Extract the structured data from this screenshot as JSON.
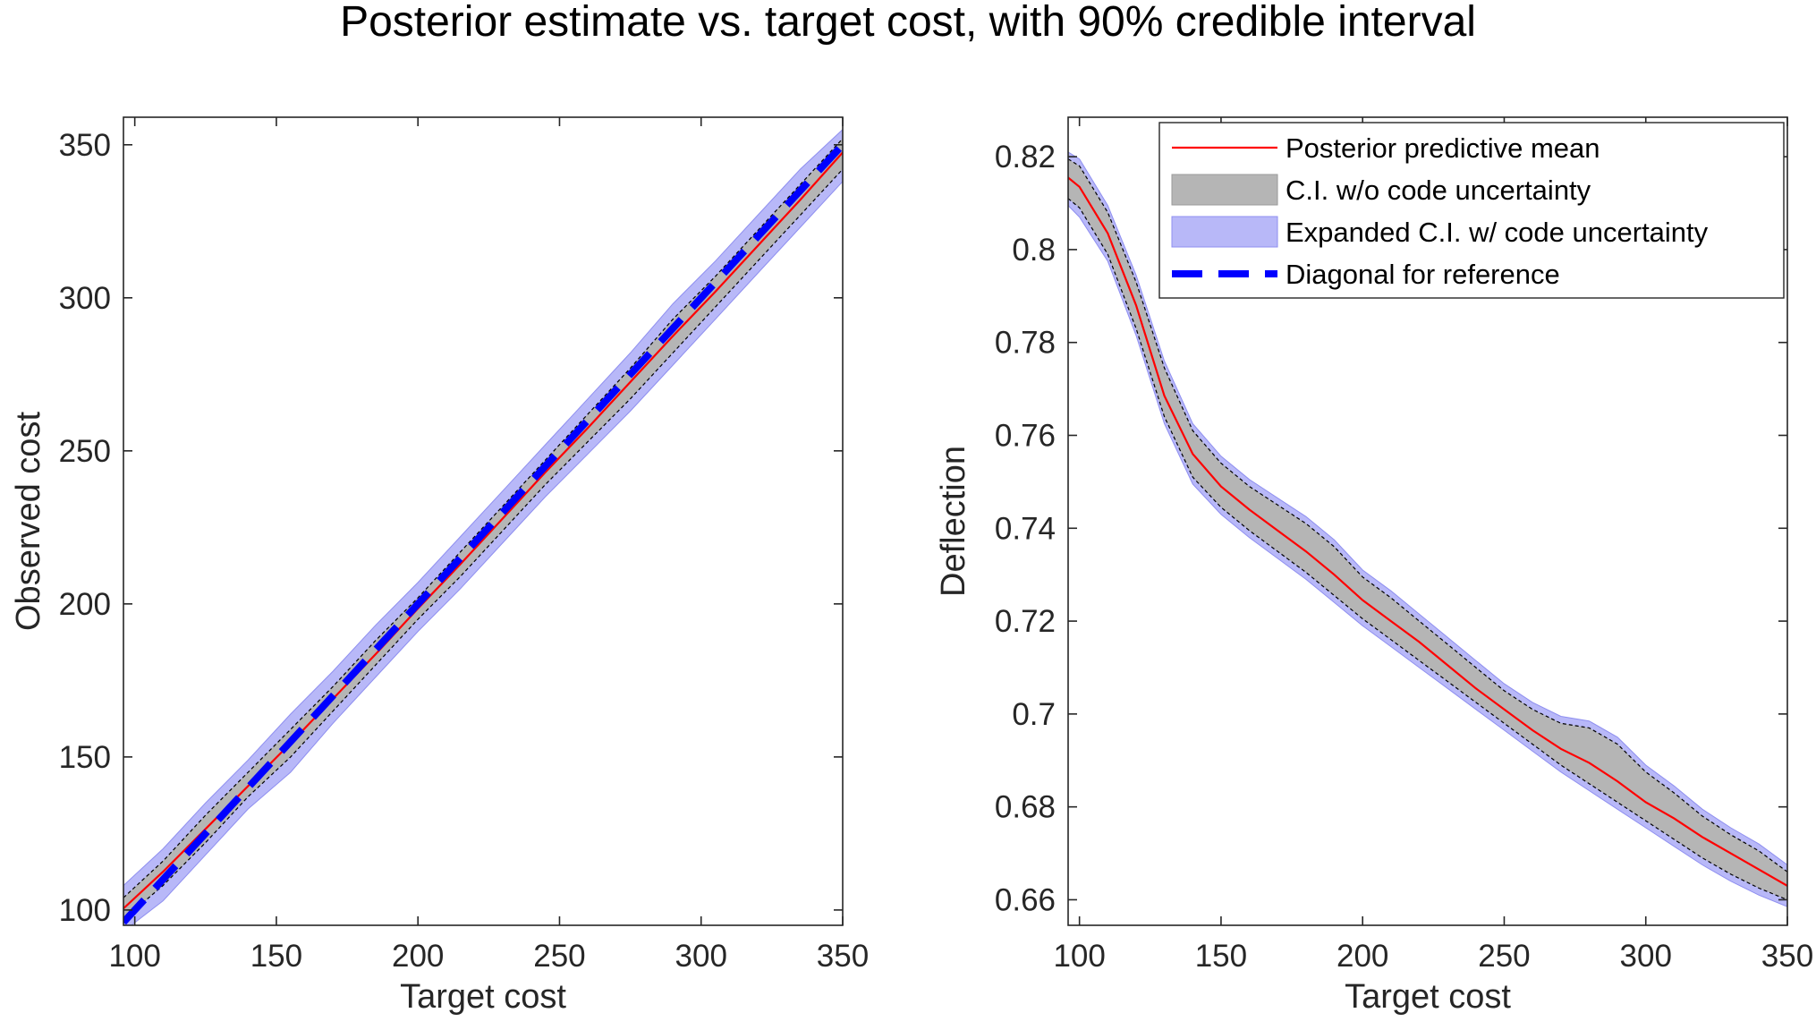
{
  "figure_title": "Posterior estimate vs. target cost, with 90% credible interval",
  "colors": {
    "mean_line": "#ff0000",
    "ci_fill": "#b5b5b5",
    "expanded_ci_fill": "#b8b8f8",
    "diagonal": "#0000ff",
    "axes": "#262626",
    "ci_bound_dash": "#000000"
  },
  "chart_data": [
    {
      "type": "line",
      "subtitle": "left panel",
      "title": "",
      "xlabel": "Target cost",
      "ylabel": "Observed cost",
      "xlim": [
        96,
        350
      ],
      "ylim": [
        95,
        359
      ],
      "xticks": [
        100,
        150,
        200,
        250,
        300,
        350
      ],
      "yticks": [
        100,
        150,
        200,
        250,
        300,
        350
      ],
      "grid": false,
      "legend": "none",
      "x": [
        96,
        110,
        125,
        140,
        155,
        170,
        185,
        200,
        215,
        230,
        245,
        260,
        275,
        290,
        305,
        320,
        335,
        350
      ],
      "series": [
        {
          "role": "mean",
          "values": [
            100.5,
            112.5,
            126.5,
            140.5,
            154.5,
            169.0,
            183.5,
            198.5,
            213.0,
            228.0,
            243.0,
            257.5,
            272.5,
            287.5,
            302.0,
            317.0,
            332.0,
            347.5
          ]
        },
        {
          "role": "ci_lower",
          "values": [
            97,
            108,
            122,
            137,
            150,
            165,
            180,
            195,
            209,
            224,
            239,
            253,
            267,
            282,
            297,
            312,
            327,
            342
          ]
        },
        {
          "role": "ci_upper",
          "values": [
            104,
            116,
            131,
            145,
            159,
            173,
            188,
            202,
            217,
            232,
            247,
            262,
            277,
            293,
            307,
            322,
            337,
            352
          ]
        },
        {
          "role": "expanded_lower",
          "values": [
            93,
            103,
            118,
            133,
            145,
            161,
            176,
            191,
            205,
            220,
            235,
            249,
            263,
            278,
            293,
            308,
            323,
            338
          ]
        },
        {
          "role": "expanded_upper",
          "values": [
            108,
            120,
            135,
            149,
            164,
            178,
            193,
            207,
            222,
            237,
            252,
            267,
            282,
            298,
            312,
            327,
            342,
            355
          ]
        },
        {
          "role": "diagonal",
          "values": [
            96,
            110,
            125,
            140,
            155,
            170,
            185,
            200,
            215,
            230,
            245,
            260,
            275,
            290,
            305,
            320,
            335,
            350
          ]
        }
      ]
    },
    {
      "type": "line",
      "subtitle": "right panel",
      "title": "",
      "xlabel": "Target cost",
      "ylabel": "Deflection",
      "xlim": [
        96,
        350
      ],
      "ylim": [
        0.6545,
        0.8285
      ],
      "xticks": [
        100,
        150,
        200,
        250,
        300,
        350
      ],
      "yticks": [
        0.66,
        0.68,
        0.7,
        0.72,
        0.74,
        0.76,
        0.78,
        0.8,
        0.82
      ],
      "ytick_labels": [
        "0.66",
        "0.68",
        "0.7",
        "0.72",
        "0.74",
        "0.76",
        "0.78",
        "0.8",
        "0.82"
      ],
      "grid": false,
      "legend": "top-right",
      "x": [
        96,
        100,
        110,
        120,
        130,
        140,
        150,
        160,
        170,
        180,
        190,
        200,
        210,
        220,
        230,
        240,
        250,
        260,
        270,
        280,
        290,
        300,
        310,
        320,
        330,
        340,
        350
      ],
      "series": [
        {
          "role": "mean",
          "name": "Posterior predictive mean",
          "values": [
            0.8155,
            0.8135,
            0.8035,
            0.788,
            0.7685,
            0.756,
            0.749,
            0.744,
            0.7395,
            0.735,
            0.73,
            0.7245,
            0.72,
            0.7155,
            0.7105,
            0.7055,
            0.701,
            0.6965,
            0.6925,
            0.6895,
            0.6855,
            0.681,
            0.6775,
            0.6735,
            0.67,
            0.6665,
            0.663
          ]
        },
        {
          "role": "ci_lower",
          "values": [
            0.811,
            0.809,
            0.799,
            0.783,
            0.764,
            0.751,
            0.7445,
            0.7395,
            0.735,
            0.7305,
            0.7255,
            0.7205,
            0.716,
            0.7115,
            0.707,
            0.7025,
            0.698,
            0.6935,
            0.689,
            0.685,
            0.681,
            0.677,
            0.673,
            0.669,
            0.6655,
            0.6625,
            0.66
          ]
        },
        {
          "role": "ci_upper",
          "name": "C.I. w/o code uncertainty",
          "values": [
            0.8195,
            0.818,
            0.808,
            0.793,
            0.7745,
            0.761,
            0.754,
            0.749,
            0.745,
            0.741,
            0.736,
            0.7295,
            0.725,
            0.72,
            0.715,
            0.71,
            0.705,
            0.701,
            0.698,
            0.697,
            0.6935,
            0.6875,
            0.683,
            0.678,
            0.674,
            0.6705,
            0.666
          ]
        },
        {
          "role": "expanded_lower",
          "values": [
            0.8095,
            0.807,
            0.7975,
            0.7815,
            0.7625,
            0.7495,
            0.743,
            0.738,
            0.7335,
            0.729,
            0.724,
            0.719,
            0.7145,
            0.71,
            0.7055,
            0.701,
            0.6965,
            0.692,
            0.6875,
            0.6835,
            0.6795,
            0.6755,
            0.6715,
            0.6675,
            0.664,
            0.661,
            0.6585
          ]
        },
        {
          "role": "expanded_upper",
          "name": "Expanded C.I. w/ code uncertainty",
          "values": [
            0.821,
            0.8195,
            0.8095,
            0.7945,
            0.776,
            0.7625,
            0.7555,
            0.7505,
            0.7465,
            0.7425,
            0.7375,
            0.731,
            0.7265,
            0.7215,
            0.7165,
            0.7115,
            0.7065,
            0.7025,
            0.6995,
            0.6985,
            0.695,
            0.689,
            0.6845,
            0.6795,
            0.6755,
            0.672,
            0.6675
          ]
        }
      ],
      "legend_entries": [
        {
          "label": "Posterior predictive mean",
          "kind": "line"
        },
        {
          "label": "C.I. w/o code uncertainty",
          "kind": "ci_patch"
        },
        {
          "label": "Expanded C.I. w/ code uncertainty",
          "kind": "expanded_patch"
        },
        {
          "label": "Diagonal for reference",
          "kind": "dashed"
        }
      ]
    }
  ]
}
